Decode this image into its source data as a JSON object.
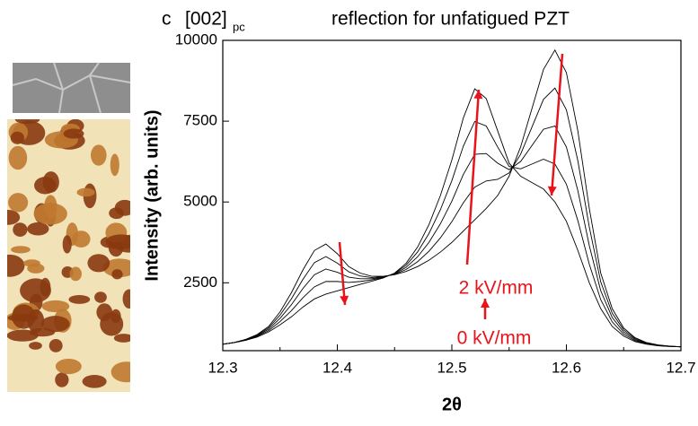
{
  "chart_data": {
    "type": "line",
    "panel_label": "c",
    "title": "[002]",
    "title_subscript": "pc",
    "title_rest": "reflection for unfatigued PZT",
    "x_label": "2θ",
    "y_label": "Intensity (arb. units)",
    "annotations": [
      "2 kV/mm",
      "0 kV/mm"
    ],
    "annotation_color": "#e8141b",
    "xlim": [
      12.3,
      12.7
    ],
    "xticks": [
      12.3,
      12.4,
      12.5,
      12.6,
      12.7
    ],
    "ylim": [
      400,
      10000
    ],
    "yticks": [
      2500,
      5000,
      7500,
      10000
    ],
    "x": [
      12.3,
      12.31,
      12.32,
      12.33,
      12.34,
      12.35,
      12.36,
      12.37,
      12.38,
      12.39,
      12.4,
      12.41,
      12.42,
      12.43,
      12.44,
      12.45,
      12.46,
      12.47,
      12.48,
      12.49,
      12.5,
      12.51,
      12.52,
      12.53,
      12.54,
      12.55,
      12.56,
      12.57,
      12.58,
      12.59,
      12.6,
      12.61,
      12.62,
      12.63,
      12.64,
      12.65,
      12.66,
      12.67,
      12.68,
      12.69,
      12.7
    ],
    "series": [
      {
        "color": "#000000",
        "values": [
          600,
          650,
          750,
          900,
          1150,
          1600,
          2200,
          2900,
          3500,
          3700,
          3400,
          3000,
          2800,
          2700,
          2700,
          2750,
          2850,
          3000,
          3200,
          3450,
          3750,
          4100,
          4450,
          4800,
          5200,
          5800,
          6700,
          7900,
          9100,
          9700,
          9000,
          7200,
          4800,
          2800,
          1700,
          1100,
          800,
          650,
          580,
          540,
          520
        ]
      },
      {
        "color": "#000000",
        "values": [
          600,
          650,
          745,
          880,
          1110,
          1500,
          2010,
          2610,
          3125,
          3310,
          3110,
          2840,
          2710,
          2660,
          2690,
          2760,
          2910,
          3150,
          3475,
          3890,
          4390,
          4975,
          5460,
          5650,
          5700,
          5900,
          6475,
          7325,
          8175,
          8525,
          7850,
          6275,
          4225,
          2525,
          1560,
          1040,
          770,
          640,
          570,
          540,
          520
        ]
      },
      {
        "color": "#000000",
        "values": [
          600,
          650,
          735,
          860,
          1065,
          1400,
          1825,
          2325,
          2750,
          2925,
          2825,
          2675,
          2625,
          2625,
          2675,
          2775,
          2975,
          3300,
          3750,
          4325,
          5025,
          5850,
          6475,
          6500,
          6200,
          6000,
          6250,
          6750,
          7250,
          7350,
          6700,
          5350,
          3650,
          2250,
          1425,
          975,
          740,
          625,
          565,
          535,
          520
        ]
      },
      {
        "color": "#000000",
        "values": [
          600,
          650,
          725,
          840,
          1020,
          1300,
          1640,
          2040,
          2375,
          2540,
          2540,
          2510,
          2540,
          2590,
          2660,
          2790,
          3040,
          3450,
          4025,
          4760,
          5660,
          6725,
          7490,
          7350,
          6700,
          6100,
          6025,
          6175,
          6325,
          6175,
          5550,
          4425,
          3075,
          1975,
          1290,
          910,
          710,
          610,
          555,
          530,
          520
        ]
      },
      {
        "color": "#000000",
        "values": [
          600,
          650,
          720,
          820,
          980,
          1200,
          1450,
          1750,
          2000,
          2150,
          2250,
          2350,
          2450,
          2550,
          2650,
          2800,
          3100,
          3600,
          4300,
          5200,
          6300,
          7600,
          8500,
          8200,
          7200,
          6200,
          5800,
          5600,
          5400,
          5000,
          4400,
          3500,
          2500,
          1700,
          1150,
          850,
          680,
          600,
          550,
          530,
          520
        ]
      }
    ]
  }
}
